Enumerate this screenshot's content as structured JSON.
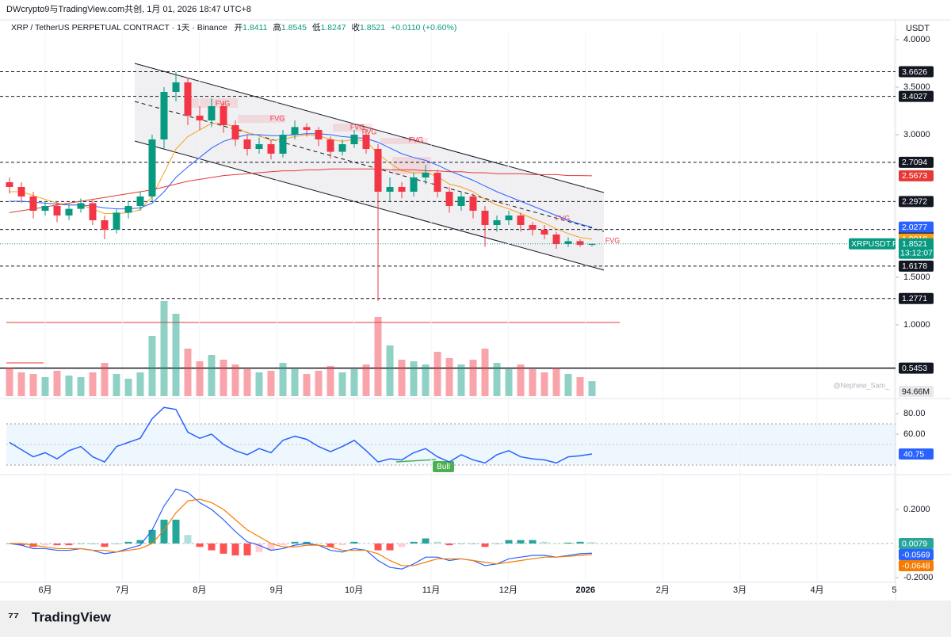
{
  "header": {
    "text": "DWcrypto9与TradingView.com共创, 1月 01, 2026 18:47 UTC+8"
  },
  "chart_data": {
    "type": "candlestick",
    "title": "XRP / TetherUS PERPETUAL CONTRACT · 1天 · Binance",
    "legend_labels": {
      "open": "开",
      "high": "高",
      "low": "低",
      "close": "收",
      "change": "+0.0110 (+0.60%)"
    },
    "unit": "USDT",
    "symbol_label": "XRPUSDT.P",
    "countdown": "13:12:07",
    "watermark": "@Nephew_Sam_",
    "ylim": [
      0.25,
      4.1
    ],
    "yticks": [
      {
        "value": 4,
        "label": "4.0000"
      },
      {
        "value": 3.5,
        "label": "3.5000"
      },
      {
        "value": 3,
        "label": "3.0000"
      },
      {
        "value": 1.5,
        "label": "1.5000"
      },
      {
        "value": 1,
        "label": "1.0000"
      }
    ],
    "xticks": [
      "6月",
      "7月",
      "8月",
      "9月",
      "10月",
      "11月",
      "12月",
      "2026",
      "2月",
      "3月",
      "4月",
      "5"
    ],
    "up_color": "#089981",
    "down_color": "#f23645",
    "open": [
      2.5,
      2.45,
      2.35,
      2.2,
      2.25,
      2.15,
      2.22,
      2.28,
      2.1,
      2.0,
      2.18,
      2.25,
      2.35,
      2.95,
      3.45,
      3.55,
      3.2,
      3.15,
      3.3,
      3.1,
      2.95,
      2.85,
      2.9,
      2.8,
      3.0,
      3.08,
      3.05,
      2.95,
      2.82,
      2.9,
      3.0,
      2.85,
      2.4,
      2.45,
      2.4,
      2.55,
      2.6,
      2.4,
      2.25,
      2.35,
      2.2,
      2.05,
      2.1,
      2.15,
      2.05,
      2.0,
      1.95,
      1.85,
      1.88,
      1.8411
    ],
    "high": [
      2.55,
      2.5,
      2.4,
      2.3,
      2.3,
      2.27,
      2.33,
      2.32,
      2.15,
      2.22,
      2.3,
      2.4,
      3.0,
      3.5,
      3.66,
      3.6,
      3.3,
      3.38,
      3.35,
      3.15,
      3.0,
      2.97,
      2.95,
      3.05,
      3.15,
      3.12,
      3.08,
      2.98,
      2.95,
      3.05,
      3.05,
      2.9,
      2.55,
      2.5,
      2.6,
      2.68,
      2.63,
      2.45,
      2.4,
      2.38,
      2.25,
      2.15,
      2.2,
      2.18,
      2.08,
      2.05,
      1.98,
      1.92,
      1.9,
      1.8545
    ],
    "low": [
      2.38,
      2.28,
      2.12,
      2.15,
      2.08,
      2.1,
      2.18,
      2.05,
      1.9,
      1.96,
      2.12,
      2.2,
      2.3,
      2.85,
      3.35,
      3.1,
      3.05,
      3.08,
      3.02,
      2.88,
      2.78,
      2.8,
      2.74,
      2.76,
      2.95,
      2.98,
      2.88,
      2.75,
      2.78,
      2.86,
      2.8,
      1.25,
      2.3,
      2.33,
      2.35,
      2.48,
      2.34,
      2.18,
      2.2,
      2.12,
      1.82,
      1.98,
      2.05,
      1.98,
      1.94,
      1.9,
      1.8,
      1.82,
      1.82,
      1.8247
    ],
    "close": [
      2.45,
      2.35,
      2.2,
      2.25,
      2.15,
      2.22,
      2.28,
      2.1,
      2.0,
      2.18,
      2.25,
      2.35,
      2.95,
      3.45,
      3.55,
      3.2,
      3.15,
      3.3,
      3.1,
      2.95,
      2.85,
      2.9,
      2.8,
      3.0,
      3.08,
      3.05,
      2.95,
      2.82,
      2.9,
      3.0,
      2.85,
      2.4,
      2.45,
      2.4,
      2.55,
      2.6,
      2.4,
      2.25,
      2.35,
      2.2,
      2.05,
      2.1,
      2.15,
      2.05,
      2.0,
      1.95,
      1.85,
      1.88,
      1.8411,
      1.8521
    ],
    "ma": [
      {
        "color": "#f7a21b",
        "values": [
          2.4,
          2.4,
          2.36,
          2.32,
          2.28,
          2.26,
          2.26,
          2.22,
          2.17,
          2.17,
          2.18,
          2.21,
          2.35,
          2.6,
          2.85,
          2.98,
          3.05,
          3.12,
          3.12,
          3.08,
          3.02,
          2.99,
          2.94,
          2.95,
          2.98,
          3.0,
          2.99,
          2.95,
          2.93,
          2.95,
          2.93,
          2.8,
          2.7,
          2.62,
          2.6,
          2.6,
          2.56,
          2.48,
          2.45,
          2.4,
          2.32,
          2.26,
          2.22,
          2.17,
          2.12,
          2.07,
          2.01,
          1.96,
          1.92,
          1.9018
        ]
      },
      {
        "color": "#2962ff",
        "values": [
          2.3,
          2.3,
          2.29,
          2.28,
          2.27,
          2.26,
          2.26,
          2.25,
          2.23,
          2.22,
          2.22,
          2.23,
          2.28,
          2.4,
          2.55,
          2.66,
          2.76,
          2.86,
          2.93,
          2.97,
          3.0,
          3.0,
          2.99,
          2.99,
          3.0,
          3.01,
          3.01,
          3.0,
          2.98,
          2.97,
          2.96,
          2.92,
          2.86,
          2.8,
          2.76,
          2.73,
          2.68,
          2.62,
          2.57,
          2.52,
          2.46,
          2.4,
          2.35,
          2.3,
          2.25,
          2.2,
          2.15,
          2.1,
          2.06,
          2.0277
        ]
      },
      {
        "color": "#e53935",
        "values": [
          2.18,
          2.2,
          2.22,
          2.24,
          2.26,
          2.28,
          2.3,
          2.32,
          2.34,
          2.36,
          2.38,
          2.4,
          2.42,
          2.45,
          2.48,
          2.51,
          2.53,
          2.55,
          2.57,
          2.58,
          2.59,
          2.6,
          2.61,
          2.62,
          2.62,
          2.63,
          2.63,
          2.64,
          2.64,
          2.64,
          2.64,
          2.64,
          2.63,
          2.63,
          2.63,
          2.62,
          2.62,
          2.61,
          2.61,
          2.6,
          2.6,
          2.59,
          2.59,
          2.59,
          2.58,
          2.58,
          2.58,
          2.57,
          2.57,
          2.5673
        ]
      }
    ],
    "levels": [
      3.6626,
      3.4027,
      2.7094,
      2.2972,
      2.0036,
      1.6178,
      1.2771
    ],
    "solid_level": 0.5453,
    "annotations": [
      "FVG",
      "FVG",
      "FVG",
      "FVG",
      "FVG",
      "FVG",
      "FVG"
    ],
    "volume": {
      "ylim": [
        0,
        600
      ],
      "last_label": "94.66M",
      "values": [
        180,
        150,
        140,
        120,
        160,
        130,
        120,
        150,
        210,
        140,
        110,
        150,
        380,
        600,
        520,
        300,
        220,
        260,
        230,
        200,
        170,
        150,
        160,
        210,
        170,
        140,
        160,
        190,
        150,
        170,
        200,
        500,
        320,
        230,
        220,
        200,
        280,
        240,
        200,
        230,
        300,
        210,
        170,
        200,
        170,
        150,
        180,
        140,
        120,
        94.66
      ]
    },
    "rsi": {
      "color": "#2962ff",
      "ylim": [
        21.5,
        93.1
      ],
      "yticks": [
        {
          "value": 80,
          "label": "80.00"
        },
        {
          "value": 60,
          "label": "60.00"
        }
      ],
      "annotation": "Bull",
      "values": [
        52,
        45,
        38,
        42,
        36,
        44,
        48,
        38,
        33,
        48,
        52,
        56,
        75,
        86,
        84,
        62,
        56,
        60,
        50,
        44,
        40,
        46,
        42,
        54,
        58,
        55,
        48,
        43,
        48,
        54,
        44,
        33,
        36,
        35,
        42,
        46,
        38,
        33,
        40,
        35,
        32,
        40,
        44,
        38,
        36,
        35,
        32,
        38,
        39,
        40.75
      ]
    },
    "macd": {
      "ylim": [
        -0.228,
        0.4
      ],
      "yticks": [
        {
          "value": 0.2,
          "label": "0.2000"
        },
        {
          "value": -0.2,
          "label": "-0.2000"
        }
      ],
      "macd_color": "#2962ff",
      "signal_color": "#f57c00",
      "macd": [
        0.0,
        -0.01,
        -0.03,
        -0.03,
        -0.04,
        -0.04,
        -0.03,
        -0.04,
        -0.06,
        -0.05,
        -0.03,
        -0.01,
        0.08,
        0.22,
        0.32,
        0.3,
        0.24,
        0.2,
        0.14,
        0.07,
        0.01,
        -0.01,
        -0.04,
        -0.03,
        -0.01,
        0.0,
        -0.01,
        -0.04,
        -0.05,
        -0.03,
        -0.04,
        -0.1,
        -0.14,
        -0.15,
        -0.12,
        -0.08,
        -0.08,
        -0.1,
        -0.09,
        -0.1,
        -0.13,
        -0.12,
        -0.09,
        -0.08,
        -0.07,
        -0.07,
        -0.08,
        -0.07,
        -0.06,
        -0.0569
      ],
      "signal": [
        0.0,
        0.0,
        -0.01,
        -0.02,
        -0.03,
        -0.03,
        -0.03,
        -0.04,
        -0.04,
        -0.05,
        -0.04,
        -0.03,
        0.0,
        0.08,
        0.18,
        0.25,
        0.26,
        0.24,
        0.2,
        0.14,
        0.08,
        0.04,
        0.0,
        -0.02,
        -0.02,
        -0.01,
        -0.01,
        -0.02,
        -0.04,
        -0.04,
        -0.04,
        -0.06,
        -0.1,
        -0.13,
        -0.13,
        -0.11,
        -0.09,
        -0.09,
        -0.09,
        -0.1,
        -0.11,
        -0.12,
        -0.11,
        -0.1,
        -0.09,
        -0.08,
        -0.08,
        -0.075,
        -0.07,
        -0.0648
      ],
      "histogram": [
        0,
        -0.01,
        -0.02,
        -0.01,
        -0.01,
        -0.01,
        0,
        0,
        -0.02,
        0,
        0.01,
        0.02,
        0.08,
        0.14,
        0.14,
        0.05,
        -0.02,
        -0.04,
        -0.06,
        -0.07,
        -0.07,
        -0.05,
        -0.04,
        -0.01,
        0.01,
        0.01,
        0,
        -0.02,
        -0.01,
        0.01,
        0,
        -0.04,
        -0.04,
        -0.02,
        0.01,
        0.03,
        0.01,
        -0.01,
        0,
        0,
        -0.02,
        0,
        0.02,
        0.02,
        0.02,
        0.01,
        0,
        0.005,
        0.01,
        0.0079
      ]
    }
  },
  "footer": {
    "brand": "TradingView"
  }
}
